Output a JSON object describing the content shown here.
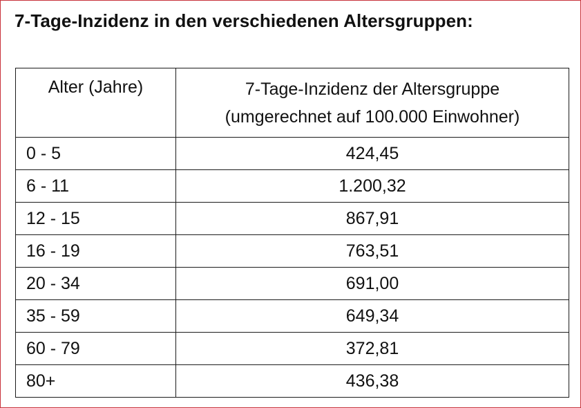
{
  "title": "7-Tage-Inzidenz in den verschiedenen Altersgruppen:",
  "table": {
    "headers": {
      "age": "Alter (Jahre)",
      "value_line1": "7-Tage-Inzidenz der Altersgruppe",
      "value_line2": "(umgerechnet auf 100.000 Einwohner)"
    },
    "rows": [
      {
        "age": "0 - 5",
        "value": "424,45"
      },
      {
        "age": "6 - 11",
        "value": "1.200,32"
      },
      {
        "age": "12 - 15",
        "value": "867,91"
      },
      {
        "age": "16 - 19",
        "value": "763,51"
      },
      {
        "age": "20 - 34",
        "value": "691,00"
      },
      {
        "age": "35 - 59",
        "value": "649,34"
      },
      {
        "age": "60 - 79",
        "value": "372,81"
      },
      {
        "age": "80+",
        "value": "436,38"
      }
    ]
  },
  "colors": {
    "frame_border": "#c8323a",
    "table_border": "#1a1a1a",
    "text": "#111111"
  }
}
